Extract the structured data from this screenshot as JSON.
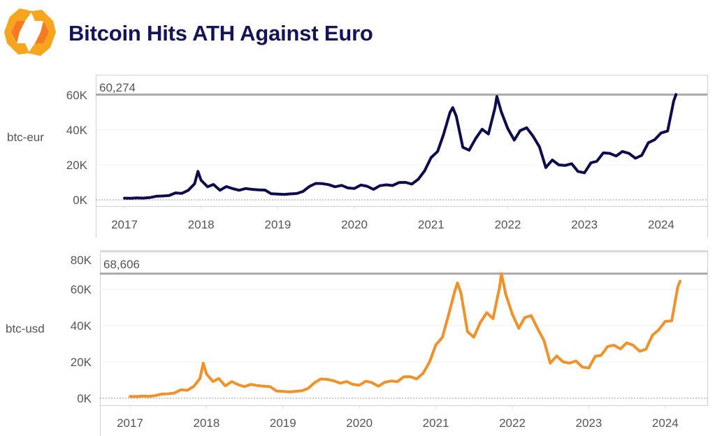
{
  "header": {
    "title": "Bitcoin Hits ATH Against Euro",
    "logo_icon": "orange-hexagon-logo-icon"
  },
  "colors": {
    "title": "#14145a",
    "btc_eur": "#0d0d4d",
    "btc_usd": "#f0922b",
    "reference_line": "#aaaaaa",
    "logo": "#f7a51c"
  },
  "chart_data": [
    {
      "type": "line",
      "ylabel": "btc-eur",
      "y_ticks": [
        "0K",
        "20K",
        "40K",
        "60K"
      ],
      "y_tick_values": [
        0,
        20000,
        40000,
        60000
      ],
      "ylim": [
        0,
        64000
      ],
      "x_ticks": [
        "2017",
        "2018",
        "2019",
        "2020",
        "2021",
        "2022",
        "2023",
        "2024"
      ],
      "reference_line": {
        "value": 60274,
        "label": "60,274"
      },
      "zero_line": "dashed",
      "series": [
        {
          "color": "#0d0d4d",
          "x": [
            "2017-01-01",
            "2017-02-01",
            "2017-03-01",
            "2017-04-01",
            "2017-05-01",
            "2017-06-01",
            "2017-07-01",
            "2017-08-01",
            "2017-09-01",
            "2017-10-01",
            "2017-11-01",
            "2017-12-01",
            "2017-12-17",
            "2018-01-01",
            "2018-02-01",
            "2018-03-01",
            "2018-04-01",
            "2018-05-01",
            "2018-06-01",
            "2018-07-01",
            "2018-08-01",
            "2018-09-01",
            "2018-10-01",
            "2018-11-01",
            "2018-12-01",
            "2019-01-01",
            "2019-02-01",
            "2019-03-01",
            "2019-04-01",
            "2019-05-01",
            "2019-06-01",
            "2019-07-01",
            "2019-08-01",
            "2019-09-01",
            "2019-10-01",
            "2019-11-01",
            "2019-12-01",
            "2020-01-01",
            "2020-02-01",
            "2020-03-01",
            "2020-04-01",
            "2020-05-01",
            "2020-06-01",
            "2020-07-01",
            "2020-08-01",
            "2020-09-01",
            "2020-10-01",
            "2020-11-01",
            "2020-12-01",
            "2021-01-01",
            "2021-02-01",
            "2021-03-01",
            "2021-04-01",
            "2021-04-14",
            "2021-05-01",
            "2021-06-01",
            "2021-07-01",
            "2021-08-01",
            "2021-09-01",
            "2021-10-01",
            "2021-11-01",
            "2021-11-10",
            "2021-12-01",
            "2022-01-01",
            "2022-02-01",
            "2022-03-01",
            "2022-04-01",
            "2022-05-01",
            "2022-06-01",
            "2022-07-01",
            "2022-08-01",
            "2022-09-01",
            "2022-10-01",
            "2022-11-01",
            "2022-12-01",
            "2023-01-01",
            "2023-02-01",
            "2023-03-01",
            "2023-04-01",
            "2023-05-01",
            "2023-06-01",
            "2023-07-01",
            "2023-08-01",
            "2023-09-01",
            "2023-10-01",
            "2023-11-01",
            "2023-12-01",
            "2024-01-01",
            "2024-02-01",
            "2024-03-01",
            "2024-03-12"
          ],
          "y": [
            950,
            910,
            1110,
            1010,
            1300,
            2050,
            2200,
            2450,
            3950,
            3700,
            5500,
            9200,
            16300,
            11200,
            7500,
            8800,
            5500,
            7600,
            6400,
            5500,
            6500,
            6000,
            5700,
            5600,
            3500,
            3300,
            3100,
            3400,
            3600,
            4800,
            7700,
            9400,
            9300,
            8700,
            7500,
            8300,
            6800,
            6500,
            8500,
            7800,
            6000,
            8100,
            8600,
            8200,
            9900,
            10000,
            9000,
            11800,
            16600,
            24200,
            27700,
            37300,
            50000,
            52800,
            47800,
            30100,
            28400,
            35100,
            40400,
            37700,
            52700,
            59200,
            50400,
            40800,
            34200,
            39600,
            41300,
            36500,
            30300,
            18500,
            22800,
            20000,
            19700,
            20700,
            16300,
            15500,
            21200,
            22100,
            26900,
            26600,
            25100,
            27700,
            26600,
            23800,
            25500,
            32700,
            34400,
            38300,
            39400,
            56600,
            60274
          ]
        }
      ]
    },
    {
      "type": "line",
      "ylabel": "btc-usd",
      "y_ticks": [
        "0K",
        "20K",
        "40K",
        "60K",
        "80K"
      ],
      "y_tick_values": [
        0,
        20000,
        40000,
        60000,
        80000
      ],
      "ylim": [
        0,
        80000
      ],
      "x_ticks": [
        "2017",
        "2018",
        "2019",
        "2020",
        "2021",
        "2022",
        "2023",
        "2024"
      ],
      "reference_line": {
        "value": 68606,
        "label": "68,606"
      },
      "zero_line": "dashed",
      "series": [
        {
          "color": "#f0922b",
          "x": [
            "2017-01-01",
            "2017-02-01",
            "2017-03-01",
            "2017-04-01",
            "2017-05-01",
            "2017-06-01",
            "2017-07-01",
            "2017-08-01",
            "2017-09-01",
            "2017-10-01",
            "2017-11-01",
            "2017-12-01",
            "2017-12-17",
            "2018-01-01",
            "2018-02-01",
            "2018-03-01",
            "2018-04-01",
            "2018-05-01",
            "2018-06-01",
            "2018-07-01",
            "2018-08-01",
            "2018-09-01",
            "2018-10-01",
            "2018-11-01",
            "2018-12-01",
            "2019-01-01",
            "2019-02-01",
            "2019-03-01",
            "2019-04-01",
            "2019-05-01",
            "2019-06-01",
            "2019-07-01",
            "2019-08-01",
            "2019-09-01",
            "2019-10-01",
            "2019-11-01",
            "2019-12-01",
            "2020-01-01",
            "2020-02-01",
            "2020-03-01",
            "2020-04-01",
            "2020-05-01",
            "2020-06-01",
            "2020-07-01",
            "2020-08-01",
            "2020-09-01",
            "2020-10-01",
            "2020-11-01",
            "2020-12-01",
            "2021-01-01",
            "2021-02-01",
            "2021-03-01",
            "2021-04-01",
            "2021-04-14",
            "2021-05-01",
            "2021-06-01",
            "2021-07-01",
            "2021-08-01",
            "2021-09-01",
            "2021-10-01",
            "2021-11-01",
            "2021-11-10",
            "2021-12-01",
            "2022-01-01",
            "2022-02-01",
            "2022-03-01",
            "2022-04-01",
            "2022-05-01",
            "2022-06-01",
            "2022-07-01",
            "2022-08-01",
            "2022-09-01",
            "2022-10-01",
            "2022-11-01",
            "2022-12-01",
            "2023-01-01",
            "2023-02-01",
            "2023-03-01",
            "2023-04-01",
            "2023-05-01",
            "2023-06-01",
            "2023-07-01",
            "2023-08-01",
            "2023-09-01",
            "2023-10-01",
            "2023-11-01",
            "2023-12-01",
            "2024-01-01",
            "2024-02-01",
            "2024-03-01",
            "2024-03-12"
          ],
          "y": [
            1000,
            970,
            1190,
            1080,
            1420,
            2300,
            2480,
            2870,
            4700,
            4400,
            6500,
            10900,
            19300,
            13400,
            9200,
            10900,
            6800,
            9200,
            7500,
            6400,
            7600,
            7000,
            6600,
            6400,
            4000,
            3800,
            3500,
            3800,
            4100,
            5400,
            8600,
            10600,
            10400,
            9600,
            8300,
            9200,
            7600,
            7200,
            9400,
            8600,
            6600,
            8800,
            9500,
            9200,
            11800,
            11900,
            10600,
            13800,
            19700,
            29400,
            33500,
            45200,
            58800,
            63500,
            57800,
            36700,
            33600,
            41600,
            47100,
            43800,
            61000,
            68606,
            57200,
            46300,
            38500,
            44400,
            45500,
            38500,
            31800,
            19300,
            23300,
            20000,
            19400,
            20500,
            17200,
            16600,
            23100,
            23600,
            28500,
            29200,
            27200,
            30500,
            29200,
            25900,
            27000,
            34700,
            37700,
            42300,
            42600,
            61200,
            64500
          ]
        }
      ]
    }
  ]
}
